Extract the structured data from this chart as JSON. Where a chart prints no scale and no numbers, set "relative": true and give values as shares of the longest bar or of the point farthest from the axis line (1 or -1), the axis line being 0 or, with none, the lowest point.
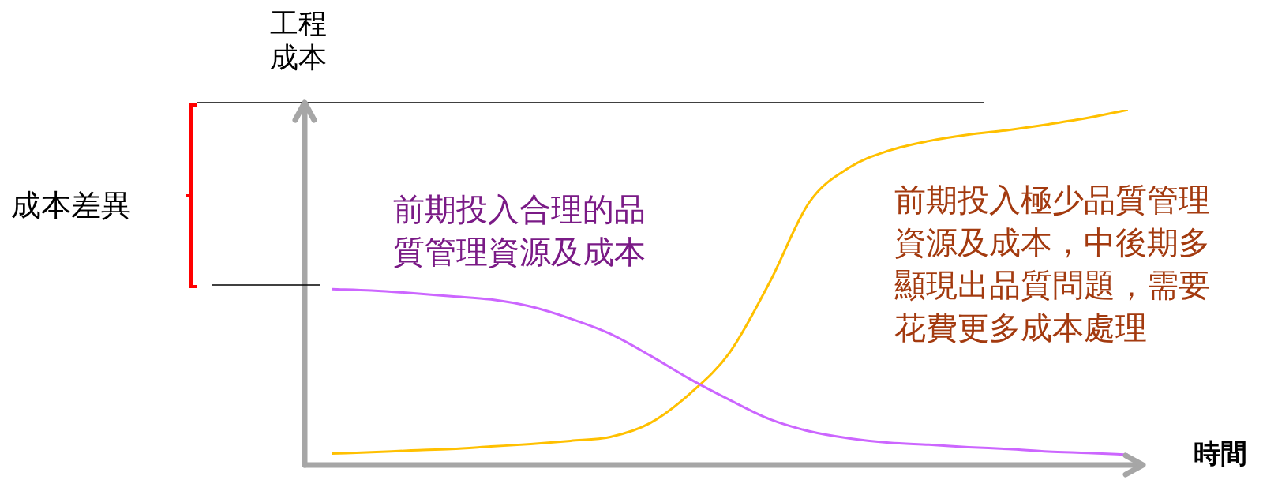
{
  "chart_data": {
    "type": "line",
    "relative": true,
    "xlabel": "時間",
    "ylabel": "工程成本",
    "legend": false,
    "grid": false,
    "categories": [
      null,
      null,
      null,
      null,
      null,
      null,
      null,
      null,
      null,
      null,
      null,
      null,
      null,
      null,
      null,
      null,
      null,
      null,
      null,
      null,
      null
    ],
    "series": [
      {
        "color": "#cc66ff",
        "values": [
          0.495,
          0.491,
          0.484,
          0.475,
          0.466,
          0.446,
          0.412,
          0.369,
          0.308,
          0.242,
          0.183,
          0.129,
          0.095,
          0.075,
          0.063,
          0.057,
          0.05,
          0.045,
          0.038,
          0.034,
          0.029
        ]
      },
      {
        "color": "#ffc000",
        "values": [
          0.032,
          0.036,
          0.041,
          0.045,
          0.052,
          0.059,
          0.068,
          0.079,
          0.118,
          0.201,
          0.317,
          0.514,
          0.74,
          0.837,
          0.885,
          0.912,
          0.93,
          0.943,
          0.959,
          0.977,
          1
        ]
      }
    ],
    "ref_lines": [
      {
        "axis": "y",
        "value": 1.02,
        "color": "#000000"
      }
    ],
    "annotations": [
      "成本差異",
      "前期投入合理的品質管理資源及成本",
      "前期投入極少品質管理資源及成本，中後期多顯現出品質問題，需要花費更多成本處理"
    ]
  }
}
